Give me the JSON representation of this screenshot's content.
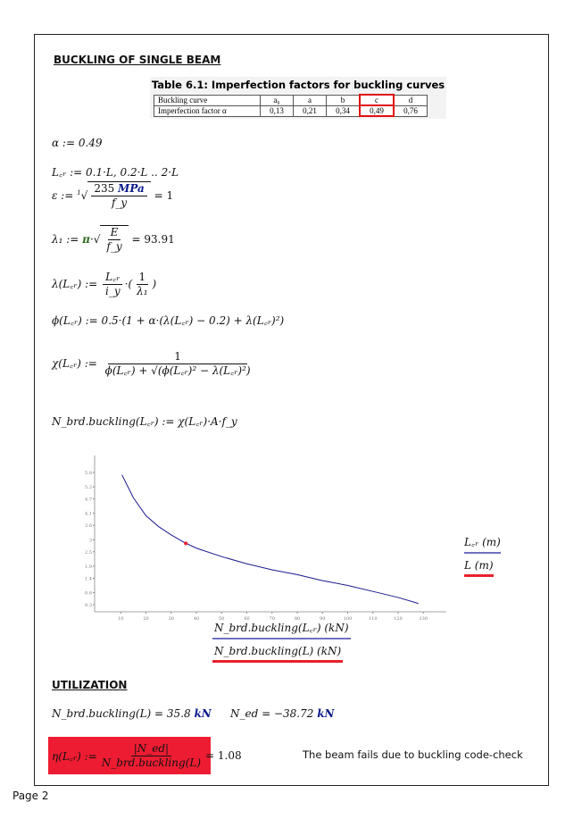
{
  "section_title": "BUCKLING OF SINGLE BEAM",
  "table": {
    "caption": "Table 6.1: Imperfection factors for buckling curves",
    "row_labels": [
      "Buckling curve",
      "Imperfection factor α"
    ],
    "curves": [
      "a₀",
      "a",
      "b",
      "c",
      "d"
    ],
    "factors": [
      "0,13",
      "0,21",
      "0,34",
      "0,49",
      "0,76"
    ],
    "highlighted": "c"
  },
  "formulas": {
    "alpha": "α := 0.49",
    "lcr": "L꜀ᵣ := 0.1·L, 0.2·L .. 2·L",
    "eps_lhs": "ε :=",
    "eps_root_index": "1",
    "eps_num": "235",
    "eps_unit": "MPa",
    "eps_den": "f_y",
    "eps_res": "= 1",
    "lam1_lhs": "λ₁ := ",
    "lam1_pi": "π",
    "lam1_num": "E",
    "lam1_den": "f_y",
    "lam1_res": "= 93.91",
    "lam_lhs": "λ(L꜀ᵣ) :=",
    "lam_num": "L꜀ᵣ",
    "lam_den": "i_y",
    "lam_num2": "1",
    "lam_den2": "λ₁",
    "phi": "ϕ(L꜀ᵣ) := 0.5·(1 + α·(λ(L꜀ᵣ) − 0.2) + λ(L꜀ᵣ)²)",
    "chi_lhs": "χ(L꜀ᵣ) :=",
    "chi_num": "1",
    "chi_den": "ϕ(L꜀ᵣ) + √(ϕ(L꜀ᵣ)² − λ(L꜀ᵣ)²)",
    "nbrd": "N_brd.buckling(L꜀ᵣ) := χ(L꜀ᵣ)·A·f_y"
  },
  "chart_data": {
    "type": "line",
    "x_ticks": [
      10,
      20,
      30,
      40,
      50,
      60,
      70,
      80,
      90,
      100,
      110,
      120,
      130
    ],
    "y_ticks": [
      "0.3",
      "0.8",
      "1.4",
      "1.9",
      "2.5",
      "3",
      "3.6",
      "4.1",
      "4.7",
      "5.2",
      "5.8"
    ],
    "xlim": [
      0,
      140
    ],
    "ylim": [
      -0.3,
      6.2
    ],
    "series": [
      {
        "name": "L꜀ᵣ (m)",
        "color": "#1a1a8c",
        "x": [
          10.5,
          15,
          20,
          25,
          30,
          35,
          40,
          50,
          60,
          70,
          80,
          90,
          100,
          110,
          120,
          128
        ],
        "y": [
          5.7,
          4.75,
          4.0,
          3.55,
          3.2,
          2.9,
          2.65,
          2.3,
          2.0,
          1.75,
          1.55,
          1.3,
          1.1,
          0.85,
          0.6,
          0.35
        ]
      },
      {
        "name": "L (m)",
        "color": "#e8202a",
        "x": [
          35.8
        ],
        "y": [
          2.85
        ]
      }
    ],
    "xlabels": [
      "N_brd.buckling(L꜀ᵣ) (kN)",
      "N_brd.buckling(L) (kN)"
    ],
    "ylabels": [
      "L꜀ᵣ (m)",
      "L (m)"
    ],
    "grid": false
  },
  "utilization": {
    "title": "UTILIZATION",
    "nbrd_lhs": "N_brd.buckling(L) = 35.8",
    "nbrd_unit": "kN",
    "ned_lhs": "N_ed = −38.72",
    "ned_unit": "kN",
    "eta_lhs": "η(L꜀ᵣ) :=",
    "eta_num": "|N_ed|",
    "eta_den": "N_brd.buckling(L)",
    "eta_res": "= 1.08",
    "verdict": "The beam fails due to buckling code-check"
  },
  "footer": {
    "page": "Page 2"
  }
}
